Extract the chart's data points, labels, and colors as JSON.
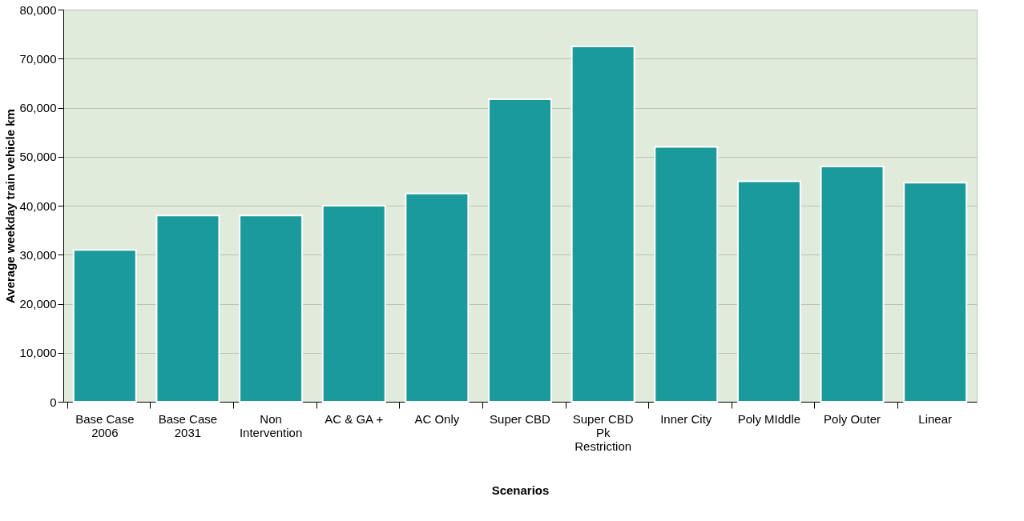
{
  "chart_data": {
    "type": "bar",
    "xlabel": "Scenarios",
    "ylabel": "Average weekday train vehicle km",
    "categories": [
      "Base Case 2006",
      "Base Case 2031",
      "Non Intervention",
      "AC & GA +",
      "AC Only",
      "Super CBD",
      "Super CBD Pk Restriction",
      "Inner City",
      "Poly MIddle",
      "Poly Outer",
      "Linear"
    ],
    "values": [
      31000,
      38000,
      38000,
      40000,
      42500,
      61700,
      72500,
      52000,
      45000,
      48000,
      44700
    ],
    "color": "#1a9a9a",
    "ylim": [
      0,
      80000
    ],
    "yticks": [
      {
        "value": 0,
        "label": "0"
      },
      {
        "value": 10000,
        "label": "10,000"
      },
      {
        "value": 20000,
        "label": "20,000"
      },
      {
        "value": 30000,
        "label": "30,000"
      },
      {
        "value": 40000,
        "label": "40,000"
      },
      {
        "value": 50000,
        "label": "50,000"
      },
      {
        "value": 60000,
        "label": "60,000"
      },
      {
        "value": 70000,
        "label": "70,000"
      },
      {
        "value": 80000,
        "label": "80,000"
      }
    ],
    "grid": "y"
  }
}
